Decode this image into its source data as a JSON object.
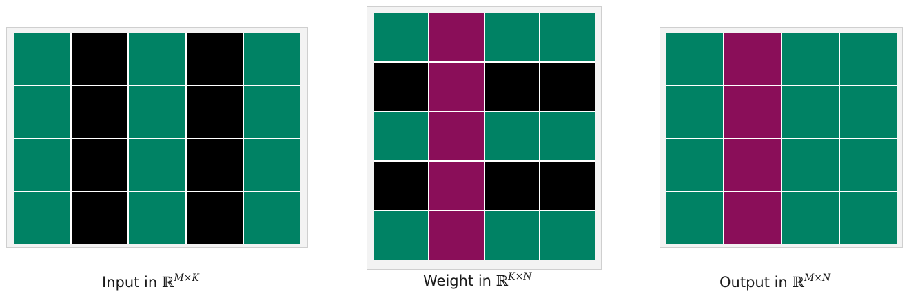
{
  "colors": {
    "green": "#008264",
    "black": "#000000",
    "magenta": "#8a0e59",
    "panel_background": "#f3f3f3"
  },
  "input": {
    "rows": 4,
    "cols": 5,
    "cells": [
      [
        "green",
        "black",
        "green",
        "black",
        "green"
      ],
      [
        "green",
        "black",
        "green",
        "black",
        "green"
      ],
      [
        "green",
        "black",
        "green",
        "black",
        "green"
      ],
      [
        "green",
        "black",
        "green",
        "black",
        "green"
      ]
    ],
    "caption_prefix": "Input in ",
    "caption_set": "ℝ",
    "caption_sup": "M×K"
  },
  "weight": {
    "rows": 5,
    "cols": 4,
    "cells": [
      [
        "green",
        "magenta",
        "green",
        "green"
      ],
      [
        "black",
        "magenta",
        "black",
        "black"
      ],
      [
        "green",
        "magenta",
        "green",
        "green"
      ],
      [
        "black",
        "magenta",
        "black",
        "black"
      ],
      [
        "green",
        "magenta",
        "green",
        "green"
      ]
    ],
    "caption_prefix": "Weight in ",
    "caption_set": "ℝ",
    "caption_sup": "K×N"
  },
  "output": {
    "rows": 4,
    "cols": 4,
    "cells": [
      [
        "green",
        "magenta",
        "green",
        "green"
      ],
      [
        "green",
        "magenta",
        "green",
        "green"
      ],
      [
        "green",
        "magenta",
        "green",
        "green"
      ],
      [
        "green",
        "magenta",
        "green",
        "green"
      ]
    ],
    "caption_prefix": "Output in ",
    "caption_set": "ℝ",
    "caption_sup": "M×N"
  }
}
